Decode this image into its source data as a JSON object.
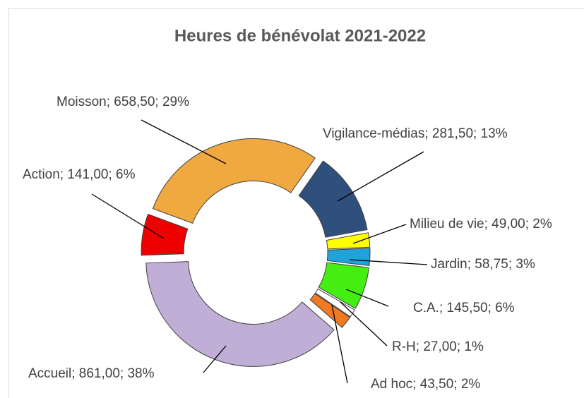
{
  "chart_data": {
    "type": "donut",
    "title": "Heures de bénévolat 2021-2022",
    "values": [
      281.5,
      49,
      58.75,
      145.5,
      27,
      43.5,
      861,
      141,
      658.5
    ],
    "value_labels": [
      "Vigilance-médias;  281,50; 13%",
      "Milieu de vie; 49,00; 2%",
      "Jardin; 58,75; 3%",
      "C.A.; 145,50; 6%",
      "R-H; 27,00; 1%",
      "Ad hoc; 43,50; 2%",
      "Accueil; 861,00; 38%",
      "Action; 141,00; 6%",
      "Moisson; 658,50; 29%"
    ],
    "colors": [
      "#2f4f7c",
      "#ffff00",
      "#1fa3d8",
      "#44ee11",
      "#ffffff",
      "#f07a22",
      "#c0aed6",
      "#ee0000",
      "#f0a840"
    ]
  }
}
